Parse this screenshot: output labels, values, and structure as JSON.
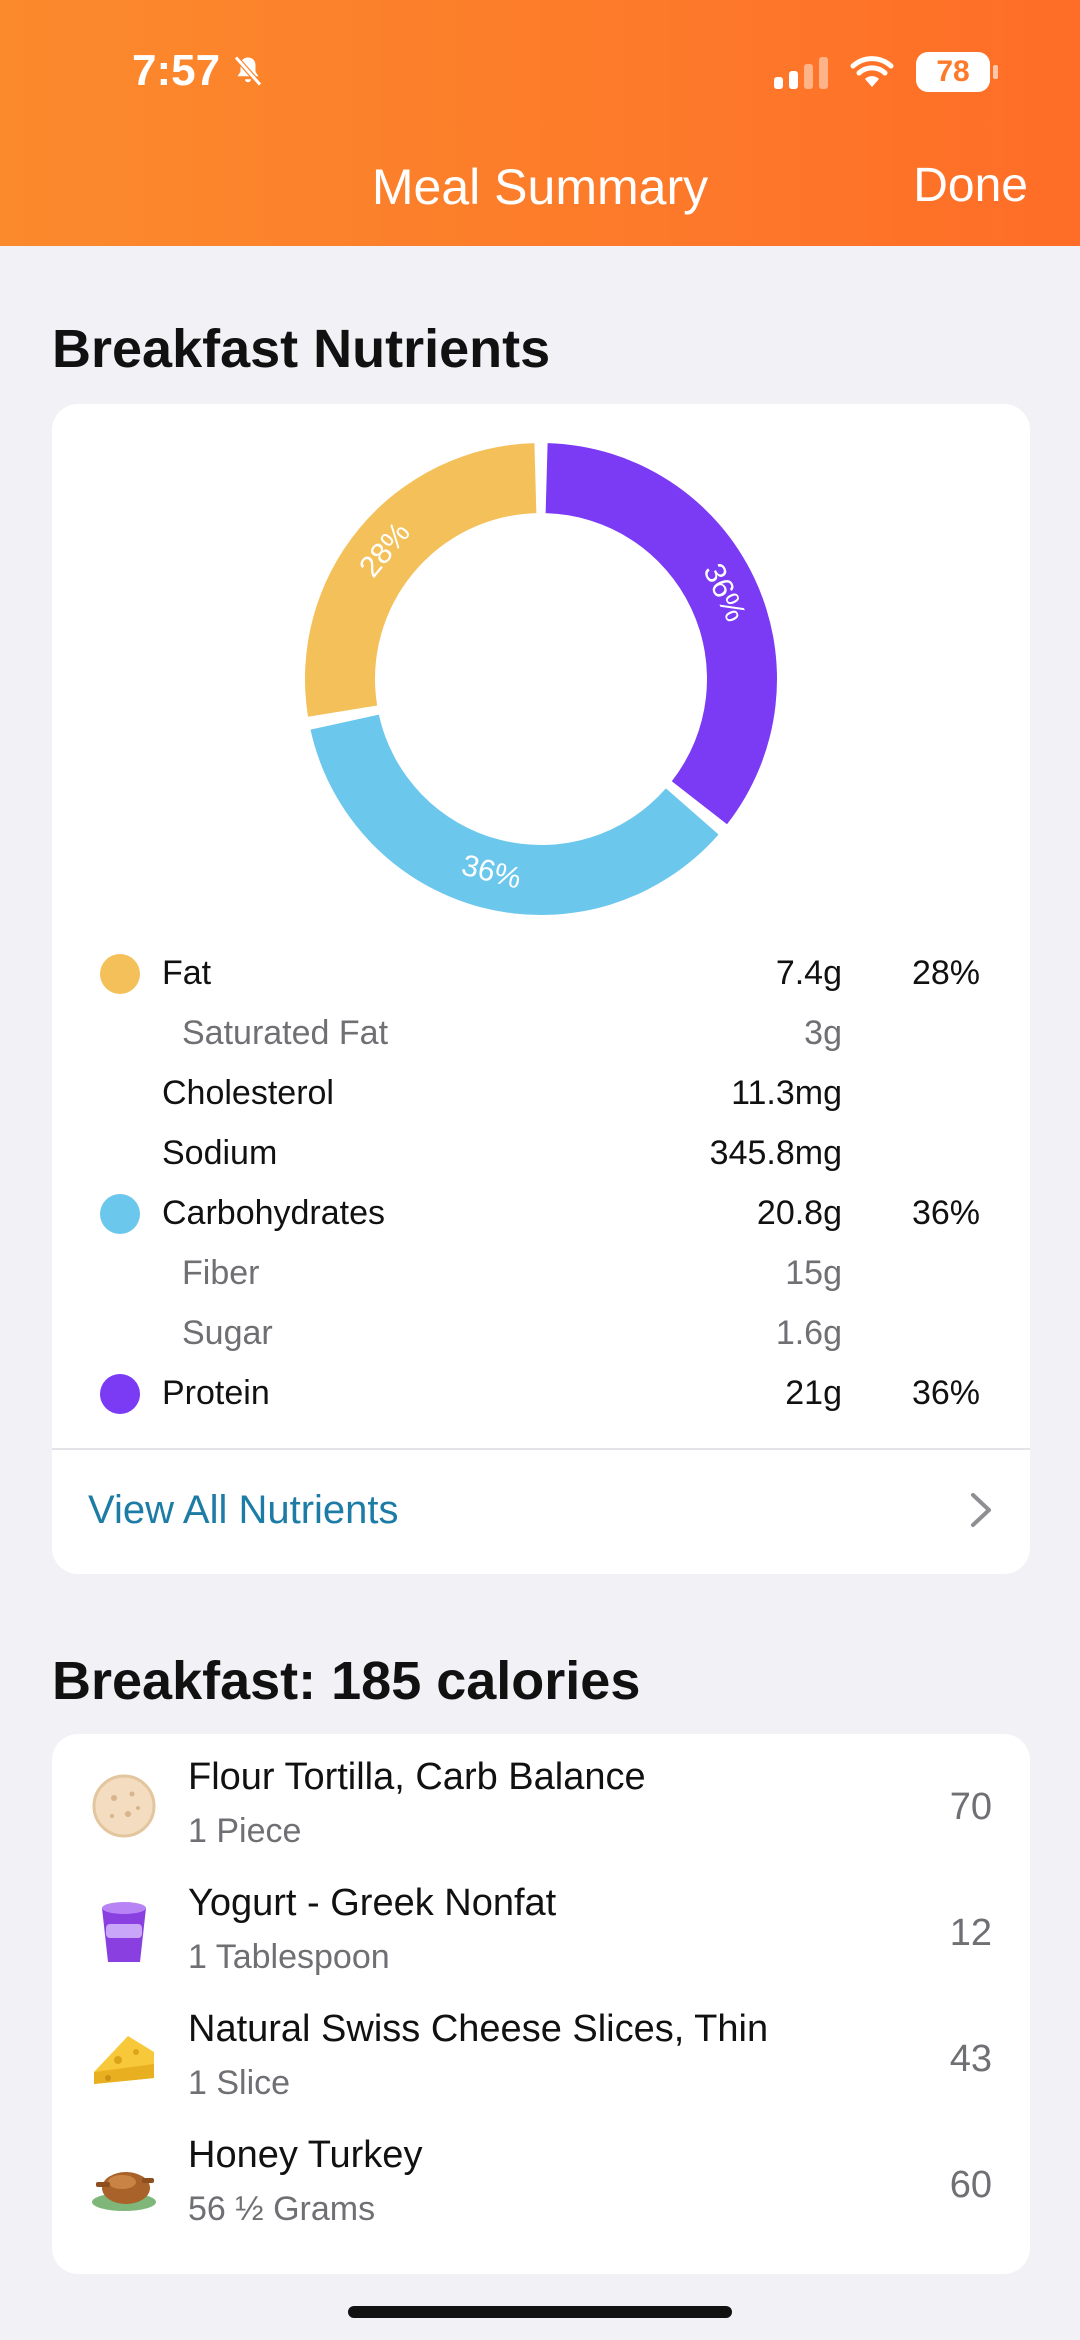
{
  "status_bar": {
    "time": "7:57",
    "battery": "78"
  },
  "nav": {
    "title": "Meal Summary",
    "done_label": "Done"
  },
  "nutrients_section": {
    "title": "Breakfast Nutrients",
    "colors": {
      "fat": "#f4c05a",
      "carbs": "#6cc7ec",
      "protein": "#7b3bf5"
    },
    "chart_data": {
      "type": "pie",
      "categories": [
        "Fat",
        "Carbohydrates",
        "Protein"
      ],
      "values": [
        28,
        36,
        36
      ],
      "labels": [
        "28%",
        "36%",
        "36%"
      ]
    },
    "rows": [
      {
        "name": "Fat",
        "amount": "7.4g",
        "pct": "28%"
      },
      {
        "name": "Saturated Fat",
        "amount": "3g"
      },
      {
        "name": "Cholesterol",
        "amount": "11.3mg"
      },
      {
        "name": "Sodium",
        "amount": "345.8mg"
      },
      {
        "name": "Carbohydrates",
        "amount": "20.8g",
        "pct": "36%"
      },
      {
        "name": "Fiber",
        "amount": "15g"
      },
      {
        "name": "Sugar",
        "amount": "1.6g"
      },
      {
        "name": "Protein",
        "amount": "21g",
        "pct": "36%"
      }
    ],
    "view_all_label": "View All Nutrients"
  },
  "foods_section": {
    "title": "Breakfast: 185 calories",
    "items": [
      {
        "name": "Flour Tortilla, Carb Balance",
        "quantity": "1 Piece",
        "calories": "70",
        "icon": "tortilla-icon"
      },
      {
        "name": "Yogurt - Greek Nonfat",
        "quantity": "1 Tablespoon",
        "calories": "12",
        "icon": "yogurt-icon"
      },
      {
        "name": "Natural Swiss Cheese Slices, Thin",
        "quantity": "1 Slice",
        "calories": "43",
        "icon": "cheese-icon"
      },
      {
        "name": "Honey Turkey",
        "quantity": "56 ½ Grams",
        "calories": "60",
        "icon": "turkey-icon"
      }
    ]
  }
}
